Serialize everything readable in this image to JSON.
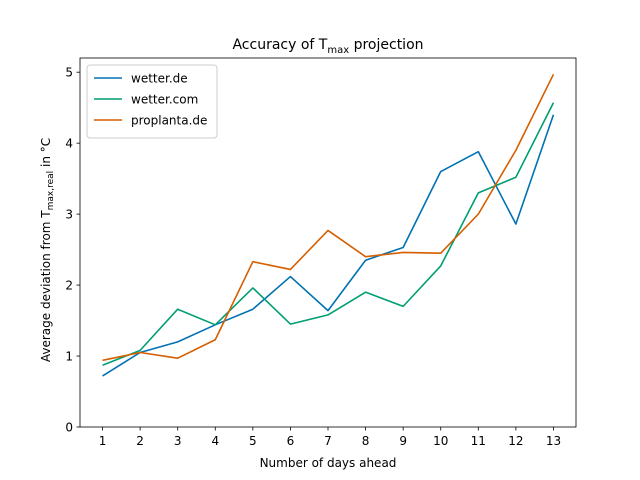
{
  "chart_data": {
    "type": "line",
    "title": {
      "prefix": "Accuracy of T",
      "subscript": "max",
      "suffix": " projection"
    },
    "xlabel": "Number of days ahead",
    "ylabel": {
      "prefix": "Average deviation from T",
      "subscript": "max,real",
      "suffix": " in °C"
    },
    "x": [
      1,
      2,
      3,
      4,
      5,
      6,
      7,
      8,
      9,
      10,
      11,
      12,
      13
    ],
    "xlim": [
      0.4,
      13.6
    ],
    "ylim": [
      0,
      5.2
    ],
    "yticks": [
      0,
      1,
      2,
      3,
      4,
      5
    ],
    "grid": false,
    "legend_position": "top-left",
    "series": [
      {
        "name": "wetter.de",
        "color": "#0072b2",
        "values": [
          0.72,
          1.05,
          1.2,
          1.44,
          1.66,
          2.12,
          1.64,
          2.35,
          2.53,
          3.6,
          3.88,
          2.86,
          4.4
        ]
      },
      {
        "name": "wetter.com",
        "color": "#009e73",
        "values": [
          0.87,
          1.08,
          1.66,
          1.44,
          1.96,
          1.45,
          1.58,
          1.9,
          1.7,
          2.27,
          3.3,
          3.52,
          4.57
        ]
      },
      {
        "name": "proplanta.de",
        "color": "#d55e00",
        "values": [
          0.94,
          1.05,
          0.97,
          1.23,
          2.33,
          2.22,
          2.77,
          2.4,
          2.46,
          2.45,
          3.0,
          3.9,
          4.97
        ]
      }
    ]
  }
}
